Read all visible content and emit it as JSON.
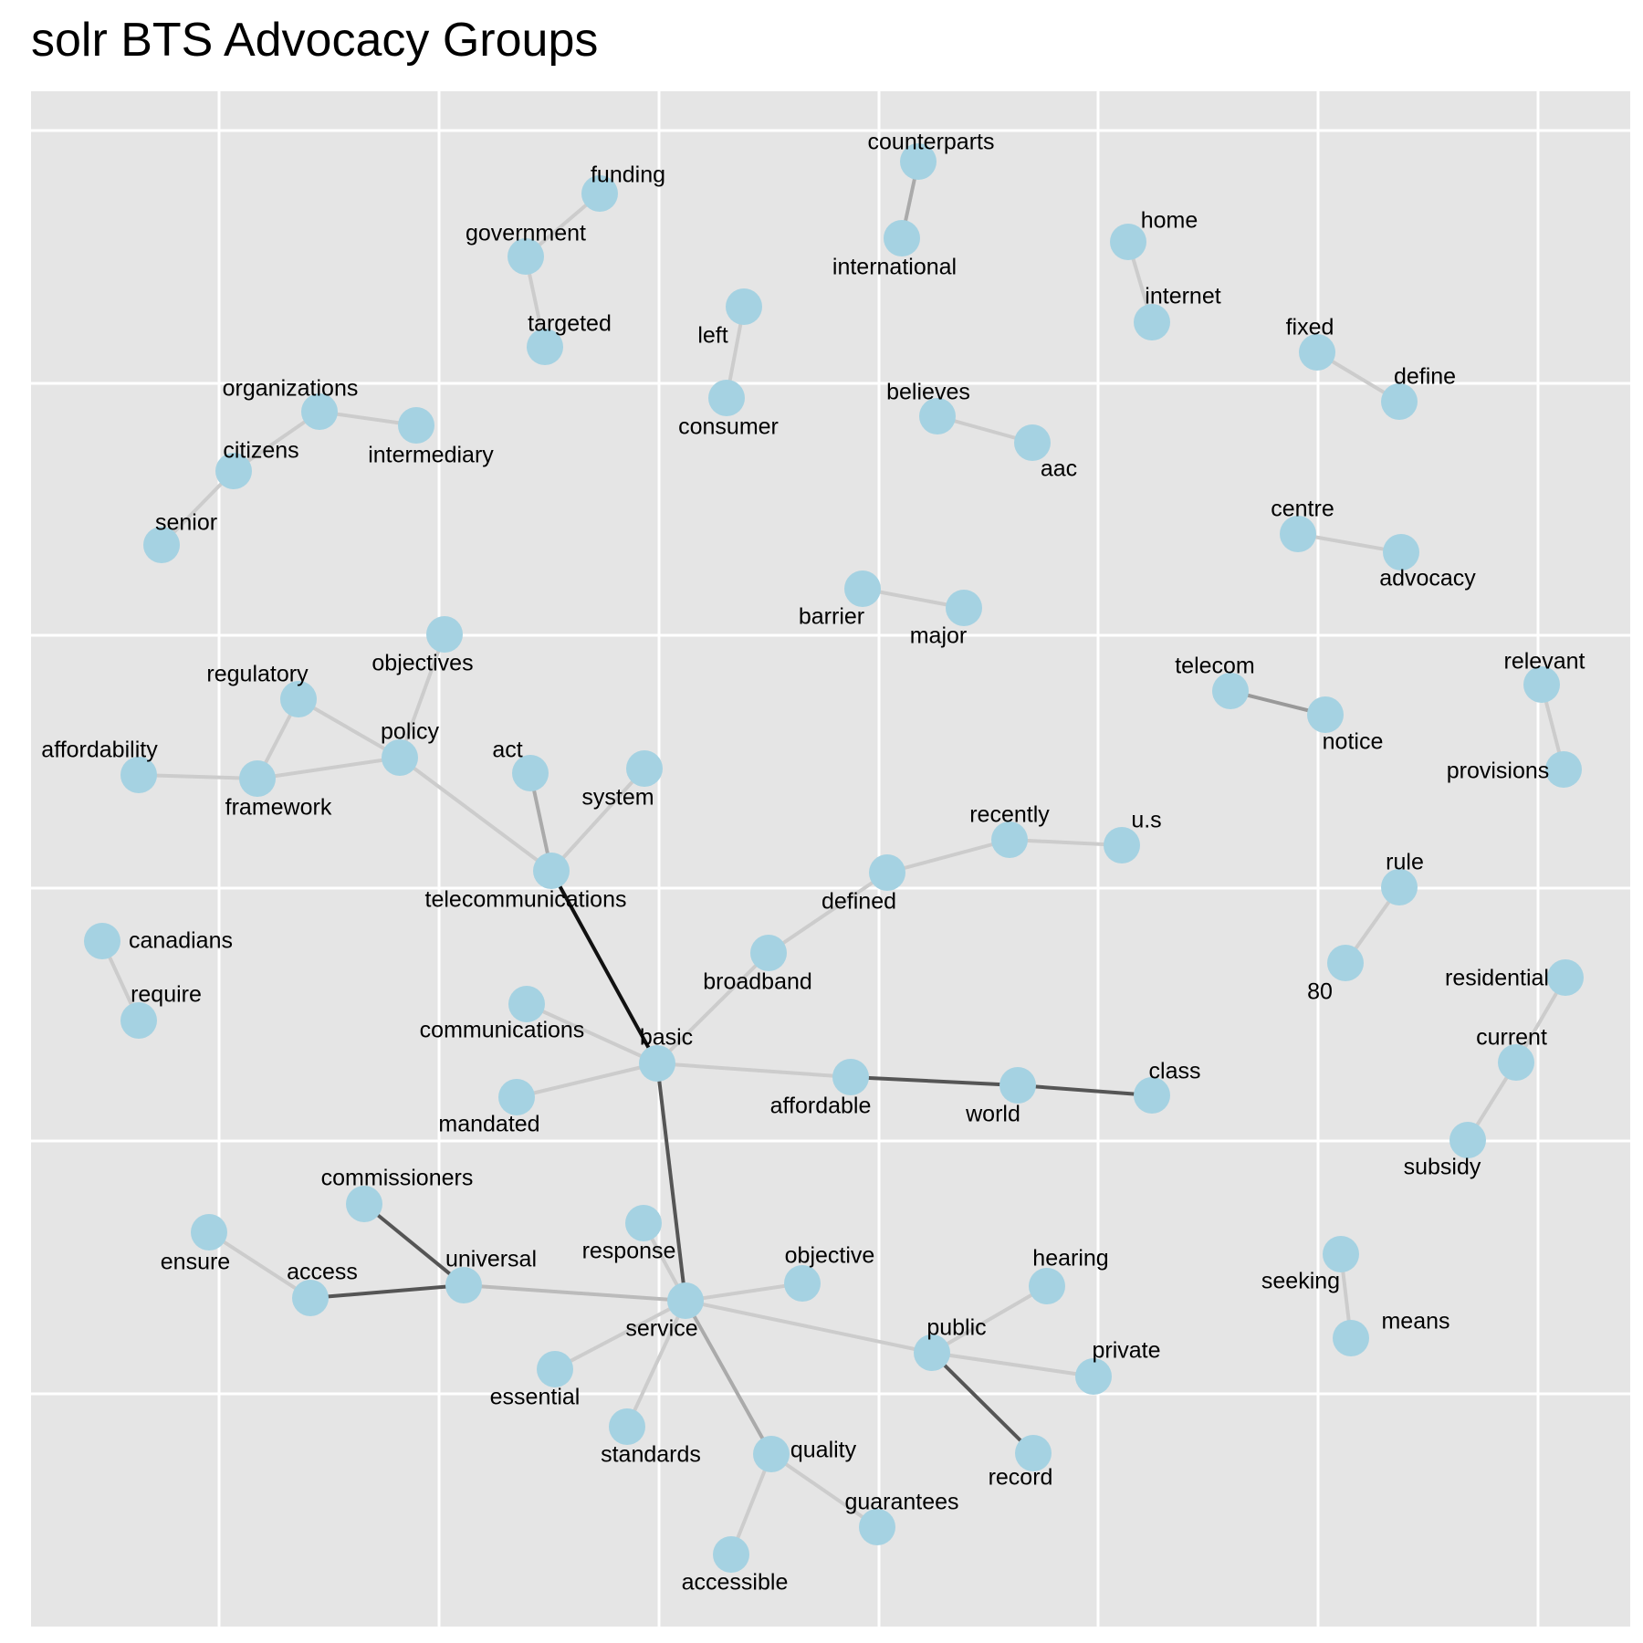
{
  "title": "solr BTS Advocacy Groups",
  "colors": {
    "panel": "#e5e5e5",
    "grid": "#ffffff",
    "node": "#a5d2e2"
  },
  "nodes": [
    {
      "id": "funding",
      "label": "funding"
    },
    {
      "id": "government",
      "label": "government"
    },
    {
      "id": "targeted",
      "label": "targeted"
    },
    {
      "id": "counterparts",
      "label": "counterparts"
    },
    {
      "id": "international",
      "label": "international"
    },
    {
      "id": "home",
      "label": "home"
    },
    {
      "id": "internet",
      "label": "internet"
    },
    {
      "id": "left",
      "label": "left"
    },
    {
      "id": "consumer",
      "label": "consumer"
    },
    {
      "id": "fixed",
      "label": "fixed"
    },
    {
      "id": "define",
      "label": "define"
    },
    {
      "id": "organizations",
      "label": "organizations"
    },
    {
      "id": "intermediary",
      "label": "intermediary"
    },
    {
      "id": "citizens",
      "label": "citizens"
    },
    {
      "id": "senior",
      "label": "senior"
    },
    {
      "id": "believes",
      "label": "believes"
    },
    {
      "id": "aac",
      "label": "aac"
    },
    {
      "id": "centre",
      "label": "centre"
    },
    {
      "id": "advocacy",
      "label": "advocacy"
    },
    {
      "id": "barrier",
      "label": "barrier"
    },
    {
      "id": "major",
      "label": "major"
    },
    {
      "id": "objectives",
      "label": "objectives"
    },
    {
      "id": "regulatory",
      "label": "regulatory"
    },
    {
      "id": "policy",
      "label": "policy"
    },
    {
      "id": "affordability",
      "label": "affordability"
    },
    {
      "id": "framework",
      "label": "framework"
    },
    {
      "id": "act",
      "label": "act"
    },
    {
      "id": "system",
      "label": "system"
    },
    {
      "id": "telecommunications",
      "label": "telecommunications"
    },
    {
      "id": "telecom",
      "label": "telecom"
    },
    {
      "id": "notice",
      "label": "notice"
    },
    {
      "id": "relevant",
      "label": "relevant"
    },
    {
      "id": "provisions",
      "label": "provisions"
    },
    {
      "id": "recently",
      "label": "recently"
    },
    {
      "id": "us",
      "label": "u.s"
    },
    {
      "id": "defined",
      "label": "defined"
    },
    {
      "id": "rule",
      "label": "rule"
    },
    {
      "id": "n80",
      "label": "80"
    },
    {
      "id": "canadians",
      "label": "canadians"
    },
    {
      "id": "require",
      "label": "require"
    },
    {
      "id": "broadband",
      "label": "broadband"
    },
    {
      "id": "residential",
      "label": "residential"
    },
    {
      "id": "communications",
      "label": "communications"
    },
    {
      "id": "basic",
      "label": "basic"
    },
    {
      "id": "current",
      "label": "current"
    },
    {
      "id": "class",
      "label": "class"
    },
    {
      "id": "affordable",
      "label": "affordable"
    },
    {
      "id": "world",
      "label": "world"
    },
    {
      "id": "mandated",
      "label": "mandated"
    },
    {
      "id": "subsidy",
      "label": "subsidy"
    },
    {
      "id": "commissioners",
      "label": "commissioners"
    },
    {
      "id": "response",
      "label": "response"
    },
    {
      "id": "ensure",
      "label": "ensure"
    },
    {
      "id": "access",
      "label": "access"
    },
    {
      "id": "universal",
      "label": "universal"
    },
    {
      "id": "objective",
      "label": "objective"
    },
    {
      "id": "hearing",
      "label": "hearing"
    },
    {
      "id": "seeking",
      "label": "seeking"
    },
    {
      "id": "service",
      "label": "service"
    },
    {
      "id": "public",
      "label": "public"
    },
    {
      "id": "private",
      "label": "private"
    },
    {
      "id": "means",
      "label": "means"
    },
    {
      "id": "essential",
      "label": "essential"
    },
    {
      "id": "standards",
      "label": "standards"
    },
    {
      "id": "quality",
      "label": "quality"
    },
    {
      "id": "record",
      "label": "record"
    },
    {
      "id": "guarantees",
      "label": "guarantees"
    },
    {
      "id": "accessible",
      "label": "accessible"
    }
  ],
  "edges": [
    {
      "source": "funding",
      "target": "government",
      "color": "#cccccc"
    },
    {
      "source": "government",
      "target": "targeted",
      "color": "#cccccc"
    },
    {
      "source": "counterparts",
      "target": "international",
      "color": "#aaaaaa"
    },
    {
      "source": "home",
      "target": "internet",
      "color": "#cccccc"
    },
    {
      "source": "left",
      "target": "consumer",
      "color": "#cccccc"
    },
    {
      "source": "fixed",
      "target": "define",
      "color": "#cccccc"
    },
    {
      "source": "organizations",
      "target": "intermediary",
      "color": "#cccccc"
    },
    {
      "source": "organizations",
      "target": "citizens",
      "color": "#cccccc"
    },
    {
      "source": "citizens",
      "target": "senior",
      "color": "#cccccc"
    },
    {
      "source": "believes",
      "target": "aac",
      "color": "#cccccc"
    },
    {
      "source": "centre",
      "target": "advocacy",
      "color": "#cccccc"
    },
    {
      "source": "barrier",
      "target": "major",
      "color": "#cccccc"
    },
    {
      "source": "objectives",
      "target": "policy",
      "color": "#cccccc"
    },
    {
      "source": "regulatory",
      "target": "policy",
      "color": "#cccccc"
    },
    {
      "source": "regulatory",
      "target": "framework",
      "color": "#cccccc"
    },
    {
      "source": "framework",
      "target": "policy",
      "color": "#cccccc"
    },
    {
      "source": "affordability",
      "target": "framework",
      "color": "#cccccc"
    },
    {
      "source": "policy",
      "target": "telecommunications",
      "color": "#cccccc"
    },
    {
      "source": "act",
      "target": "telecommunications",
      "color": "#aaaaaa"
    },
    {
      "source": "system",
      "target": "telecommunications",
      "color": "#cccccc"
    },
    {
      "source": "telecommunications",
      "target": "basic",
      "color": "#111111"
    },
    {
      "source": "telecom",
      "target": "notice",
      "color": "#999999"
    },
    {
      "source": "relevant",
      "target": "provisions",
      "color": "#cccccc"
    },
    {
      "source": "recently",
      "target": "us",
      "color": "#cccccc"
    },
    {
      "source": "defined",
      "target": "recently",
      "color": "#cccccc"
    },
    {
      "source": "broadband",
      "target": "defined",
      "color": "#cccccc"
    },
    {
      "source": "rule",
      "target": "n80",
      "color": "#cccccc"
    },
    {
      "source": "canadians",
      "target": "require",
      "color": "#cccccc"
    },
    {
      "source": "basic",
      "target": "broadband",
      "color": "#cccccc"
    },
    {
      "source": "communications",
      "target": "basic",
      "color": "#cccccc"
    },
    {
      "source": "basic",
      "target": "mandated",
      "color": "#cccccc"
    },
    {
      "source": "basic",
      "target": "affordable",
      "color": "#cccccc"
    },
    {
      "source": "affordable",
      "target": "world",
      "color": "#555555"
    },
    {
      "source": "world",
      "target": "class",
      "color": "#555555"
    },
    {
      "source": "residential",
      "target": "current",
      "color": "#cccccc"
    },
    {
      "source": "current",
      "target": "subsidy",
      "color": "#cccccc"
    },
    {
      "source": "basic",
      "target": "service",
      "color": "#555555"
    },
    {
      "source": "commissioners",
      "target": "universal",
      "color": "#555555"
    },
    {
      "source": "ensure",
      "target": "access",
      "color": "#cccccc"
    },
    {
      "source": "access",
      "target": "universal",
      "color": "#555555"
    },
    {
      "source": "universal",
      "target": "service",
      "color": "#bbbbbb"
    },
    {
      "source": "response",
      "target": "service",
      "color": "#cccccc"
    },
    {
      "source": "objective",
      "target": "service",
      "color": "#cccccc"
    },
    {
      "source": "service",
      "target": "essential",
      "color": "#cccccc"
    },
    {
      "source": "service",
      "target": "standards",
      "color": "#cccccc"
    },
    {
      "source": "service",
      "target": "quality",
      "color": "#aaaaaa"
    },
    {
      "source": "service",
      "target": "public",
      "color": "#cccccc"
    },
    {
      "source": "hearing",
      "target": "public",
      "color": "#cccccc"
    },
    {
      "source": "public",
      "target": "private",
      "color": "#cccccc"
    },
    {
      "source": "public",
      "target": "record",
      "color": "#555555"
    },
    {
      "source": "seeking",
      "target": "means",
      "color": "#cccccc"
    },
    {
      "source": "quality",
      "target": "guarantees",
      "color": "#cccccc"
    },
    {
      "source": "quality",
      "target": "accessible",
      "color": "#cccccc"
    }
  ]
}
